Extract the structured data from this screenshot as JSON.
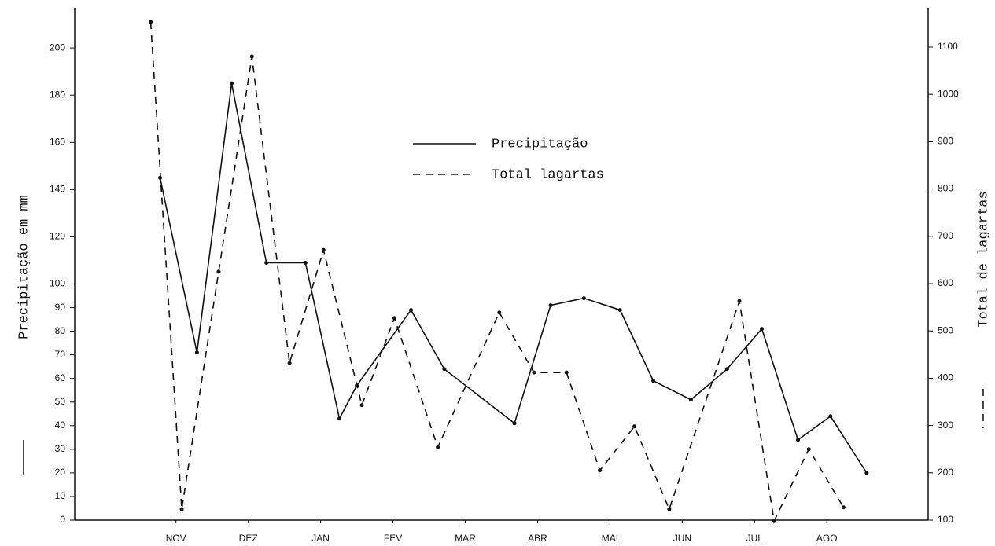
{
  "chart_data": {
    "type": "line",
    "y_label": "Precipitação em mm",
    "y2_label": "Total de lagartas",
    "xlim": [
      -1.4,
      10.4
    ],
    "xticks": [
      {
        "value": 0,
        "label": "NOV"
      },
      {
        "value": 1,
        "label": "DEZ"
      },
      {
        "value": 2,
        "label": "JAN"
      },
      {
        "value": 3,
        "label": "FEV"
      },
      {
        "value": 4,
        "label": "MAR"
      },
      {
        "value": 5,
        "label": "ABR"
      },
      {
        "value": 6,
        "label": "MAI"
      },
      {
        "value": 7,
        "label": "JUN"
      },
      {
        "value": 8,
        "label": "JUL"
      },
      {
        "value": 9,
        "label": "AGO"
      }
    ],
    "ylim": [
      0,
      217
    ],
    "yticks": [
      0,
      10,
      20,
      30,
      40,
      50,
      60,
      70,
      80,
      90,
      100,
      120,
      140,
      160,
      180,
      200
    ],
    "y2lim": [
      100,
      1183
    ],
    "y2ticks": [
      100,
      200,
      300,
      400,
      500,
      600,
      700,
      800,
      900,
      1000,
      1100
    ],
    "series": [
      {
        "name": "Precipitação",
        "color": "#111111",
        "line_style": "solid",
        "x": [
          -0.22,
          0.29,
          0.77,
          1.25,
          1.79,
          2.26,
          2.5,
          3.25,
          3.71,
          4.68,
          5.18,
          5.64,
          6.14,
          6.6,
          7.12,
          7.62,
          8.1,
          8.6,
          9.05,
          9.55
        ],
        "values": [
          145,
          71,
          185,
          109,
          109,
          43,
          57,
          89,
          64,
          41,
          91,
          94,
          89,
          59,
          51,
          64,
          81,
          34,
          44,
          20
        ]
      },
      {
        "name": "Total lagartas",
        "color": "#111111",
        "line_style": "dashed",
        "axis": "y2",
        "x": [
          -0.35,
          0.08,
          0.59,
          1.05,
          1.57,
          2.04,
          2.57,
          3.02,
          3.62,
          4.47,
          4.95,
          5.4,
          5.86,
          6.34,
          6.82,
          7.79,
          8.27,
          8.75,
          9.23
        ],
        "values": [
          1153,
          123,
          625,
          1080,
          432,
          671,
          343,
          527,
          254,
          539,
          412,
          412,
          205,
          298,
          123,
          563,
          98,
          250,
          127
        ]
      }
    ]
  }
}
